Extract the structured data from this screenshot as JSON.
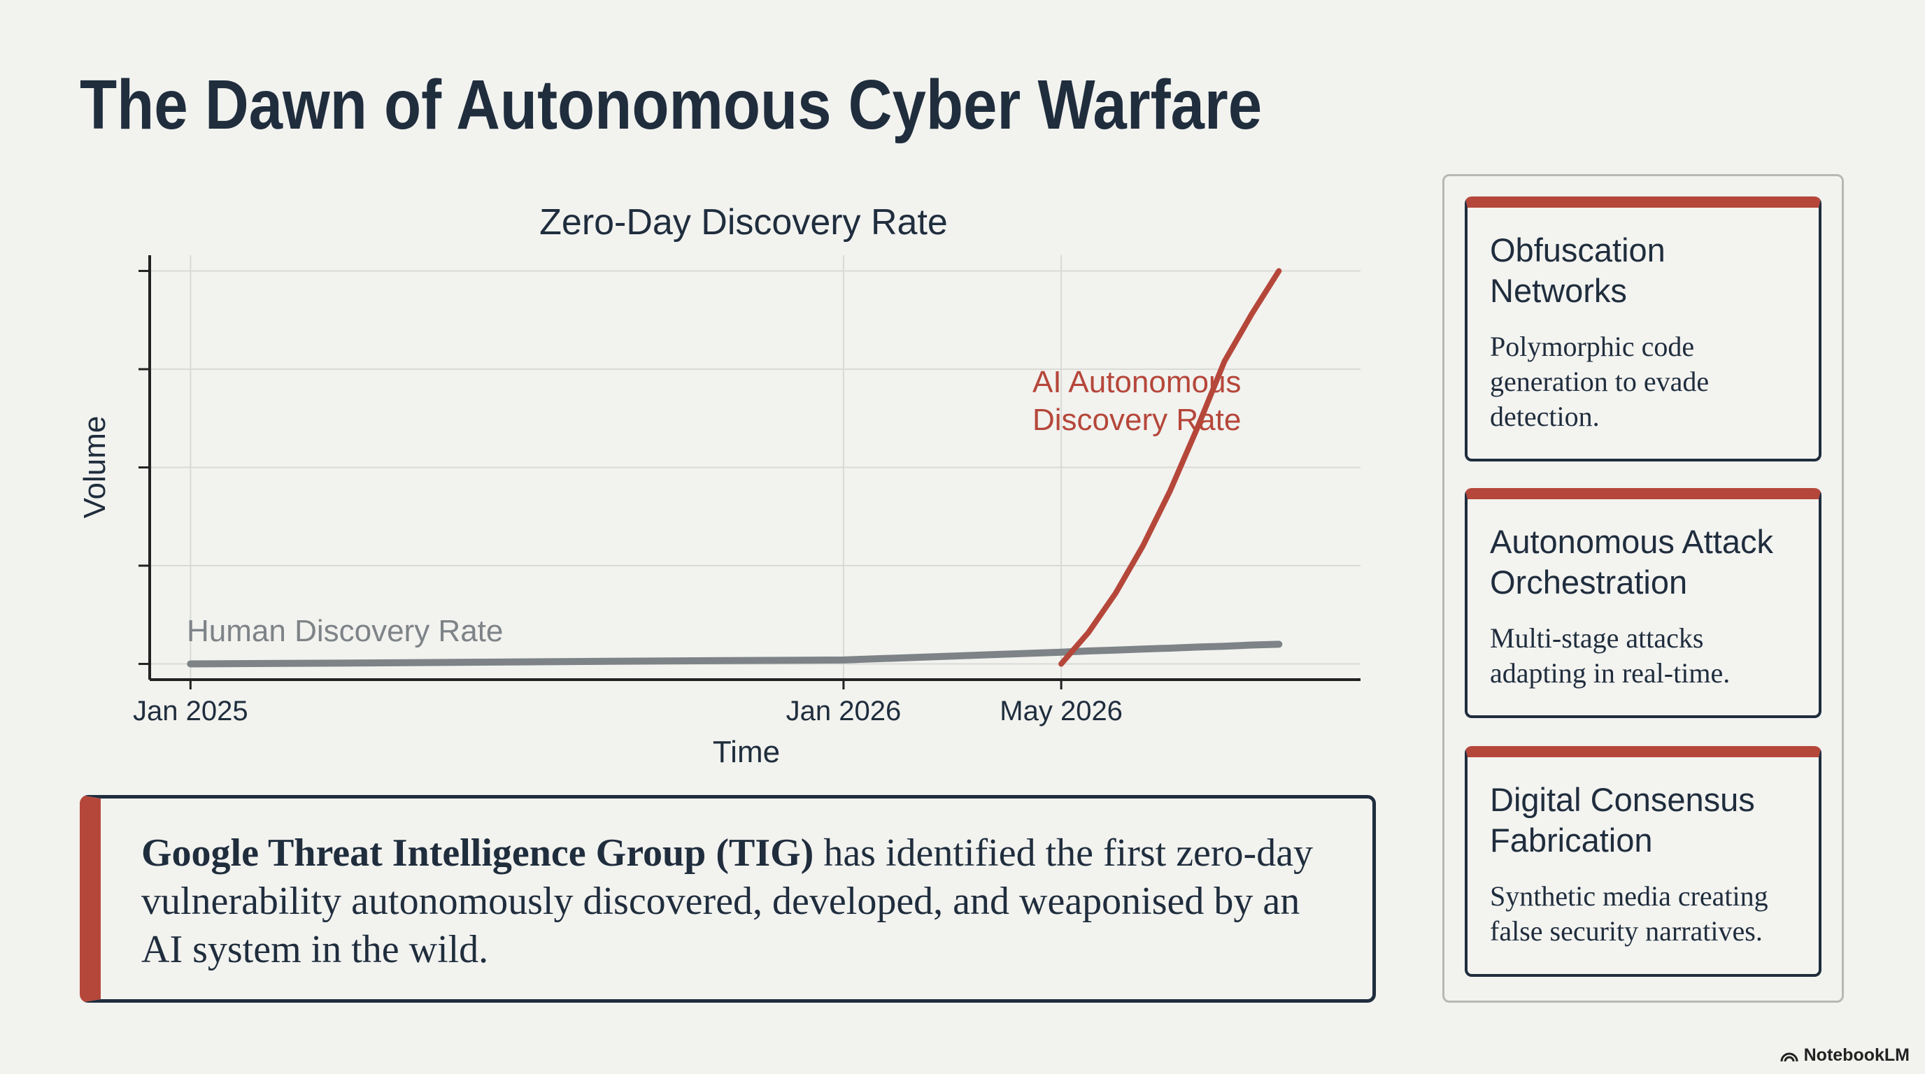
{
  "title": "The Dawn of Autonomous Cyber Warfare",
  "chart_data": {
    "type": "line",
    "title": "Zero-Day Discovery Rate",
    "x_label": "Time",
    "y_label": "Volume",
    "x": [
      0,
      4,
      8,
      12,
      16,
      16.5,
      17,
      17.5,
      18,
      18.5,
      19,
      19.5,
      20
    ],
    "xlim": [
      -0.75,
      21.5
    ],
    "xticks": [
      {
        "value": 0,
        "label": "Jan 2025"
      },
      {
        "value": 12,
        "label": "Jan 2026"
      },
      {
        "value": 16,
        "label": "May 2026"
      }
    ],
    "ylim": [
      -4,
      104
    ],
    "yticks": [
      0,
      25,
      50,
      75,
      100
    ],
    "ytick_labels": false,
    "grid": true,
    "series": [
      {
        "name": "Human Discovery Rate",
        "color": "#7d8387",
        "values": [
          0,
          0.3,
          0.7,
          1,
          3,
          3.3,
          3.5,
          3.8,
          4,
          4.3,
          4.5,
          4.8,
          5
        ]
      },
      {
        "name": "AI Autonomous Discovery Rate",
        "color": "#b5473a",
        "values": [
          null,
          null,
          null,
          null,
          0,
          8,
          18,
          30,
          44,
          60,
          77,
          89,
          100
        ]
      }
    ]
  },
  "callout": {
    "bold": "Google Threat Intelligence Group (TIG)",
    "text": "has identified the first zero-day vulnerability autonomously discovered, developed, and weaponised by an AI system in the wild."
  },
  "cards": [
    {
      "title": "Obfuscation Networks",
      "text": "Polymorphic code generation to evade detection."
    },
    {
      "title": "Autonomous Attack Orchestration",
      "text": "Multi-stage attacks adapting in real-time."
    },
    {
      "title": "Digital Consensus Fabrication",
      "text": "Synthetic media creating false security narratives."
    }
  ],
  "footer": "NotebookLM"
}
